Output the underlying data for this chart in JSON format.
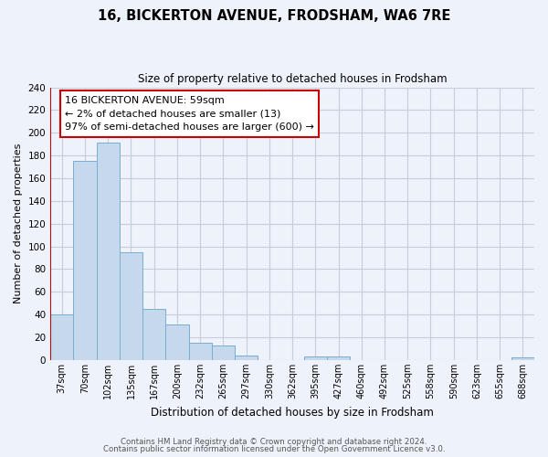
{
  "title": "16, BICKERTON AVENUE, FRODSHAM, WA6 7RE",
  "subtitle": "Size of property relative to detached houses in Frodsham",
  "xlabel": "Distribution of detached houses by size in Frodsham",
  "ylabel": "Number of detached properties",
  "categories": [
    "37sqm",
    "70sqm",
    "102sqm",
    "135sqm",
    "167sqm",
    "200sqm",
    "232sqm",
    "265sqm",
    "297sqm",
    "330sqm",
    "362sqm",
    "395sqm",
    "427sqm",
    "460sqm",
    "492sqm",
    "525sqm",
    "558sqm",
    "590sqm",
    "623sqm",
    "655sqm",
    "688sqm"
  ],
  "values": [
    40,
    175,
    191,
    95,
    45,
    31,
    15,
    13,
    4,
    0,
    0,
    3,
    3,
    0,
    0,
    0,
    0,
    0,
    0,
    0,
    2
  ],
  "bar_color": "#c6d9ec",
  "bar_edge_color": "#7aadd4",
  "annotation_title": "16 BICKERTON AVENUE: 59sqm",
  "annotation_line1": "← 2% of detached houses are smaller (13)",
  "annotation_line2": "97% of semi-detached houses are larger (600) →",
  "annotation_box_color": "white",
  "annotation_box_edge_color": "#cc0000",
  "vline_color": "#cc0000",
  "ylim": [
    0,
    240
  ],
  "yticks": [
    0,
    20,
    40,
    60,
    80,
    100,
    120,
    140,
    160,
    180,
    200,
    220,
    240
  ],
  "footer_line1": "Contains HM Land Registry data © Crown copyright and database right 2024.",
  "footer_line2": "Contains public sector information licensed under the Open Government Licence v3.0.",
  "bg_color": "#eef2fa",
  "grid_color": "#c8cdd8"
}
